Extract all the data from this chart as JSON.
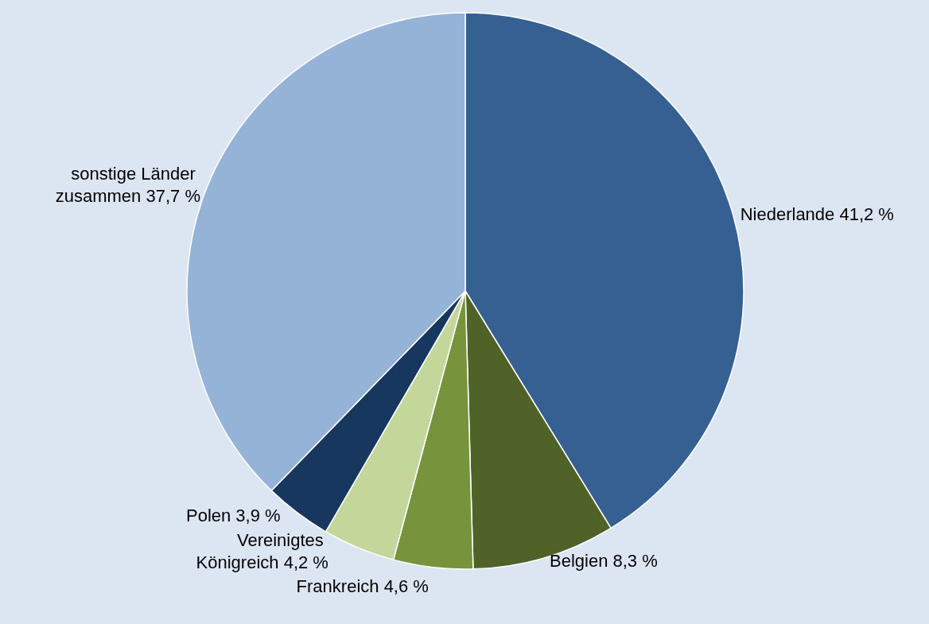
{
  "chart_data": {
    "type": "pie",
    "categories": [
      "Niederlande",
      "Belgien",
      "Frankreich",
      "Vereinigtes Königreich",
      "Polen",
      "sonstige Länder zusammen"
    ],
    "values": [
      41.2,
      8.3,
      4.6,
      4.2,
      3.9,
      37.7
    ],
    "value_labels": [
      "41,2 %",
      "8,3 %",
      "4,6 %",
      "4,2 %",
      "3,9 %",
      "37,7 %"
    ],
    "colors": [
      "#366092",
      "#4f6228",
      "#77933c",
      "#c4d79b",
      "#17375e",
      "#95b3d7"
    ],
    "legend": false
  }
}
